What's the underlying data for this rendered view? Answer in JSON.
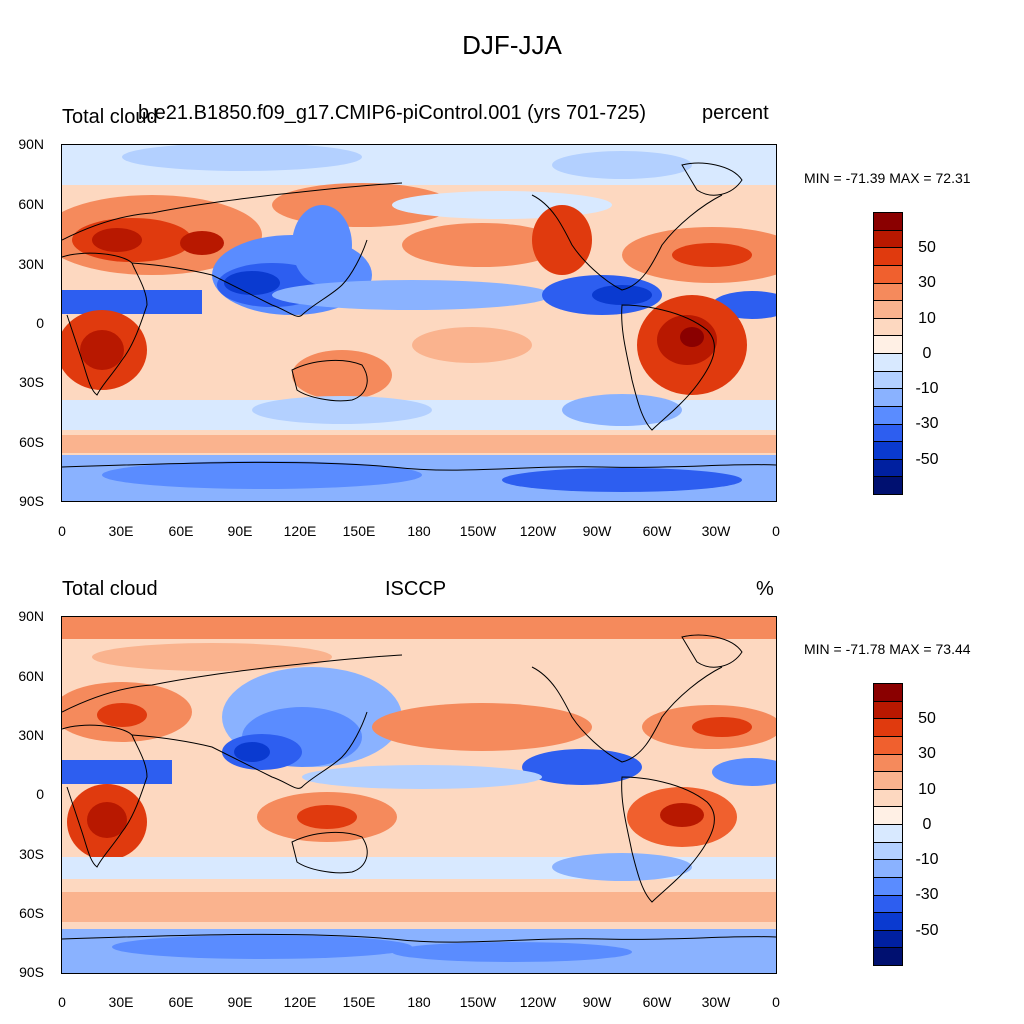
{
  "title": "DJF-JJA",
  "panels": [
    {
      "left_title": "Total cloud",
      "center_title": "b.e21.B1850.f09_g17.CMIP6-piControl.001 (yrs 701-725)",
      "right_title": "percent",
      "stats": "MIN = -71.39 MAX =  72.31"
    },
    {
      "left_title": "Total cloud",
      "center_title": "ISCCP",
      "right_title": "%",
      "stats": "MIN = -71.78 MAX =  73.44"
    }
  ],
  "axes": {
    "lat_labels": [
      "90N",
      "60N",
      "30N",
      "0",
      "30S",
      "60S",
      "90S"
    ],
    "lon_labels": [
      "0",
      "30E",
      "60E",
      "90E",
      "120E",
      "150E",
      "180",
      "150W",
      "120W",
      "90W",
      "60W",
      "30W",
      "0"
    ]
  },
  "colorbar": {
    "labels": [
      "50",
      "30",
      "10",
      "0",
      "-10",
      "-30",
      "-50"
    ],
    "colors": [
      "#8a0000",
      "#b81800",
      "#e03a0e",
      "#f0602e",
      "#f58a5c",
      "#fab38e",
      "#fdd8c0",
      "#fff0e5",
      "#d8e9ff",
      "#b3d0ff",
      "#8ab2ff",
      "#5a8cff",
      "#2d5ef0",
      "#0a3ad0",
      "#0020a0",
      "#001070"
    ]
  }
}
